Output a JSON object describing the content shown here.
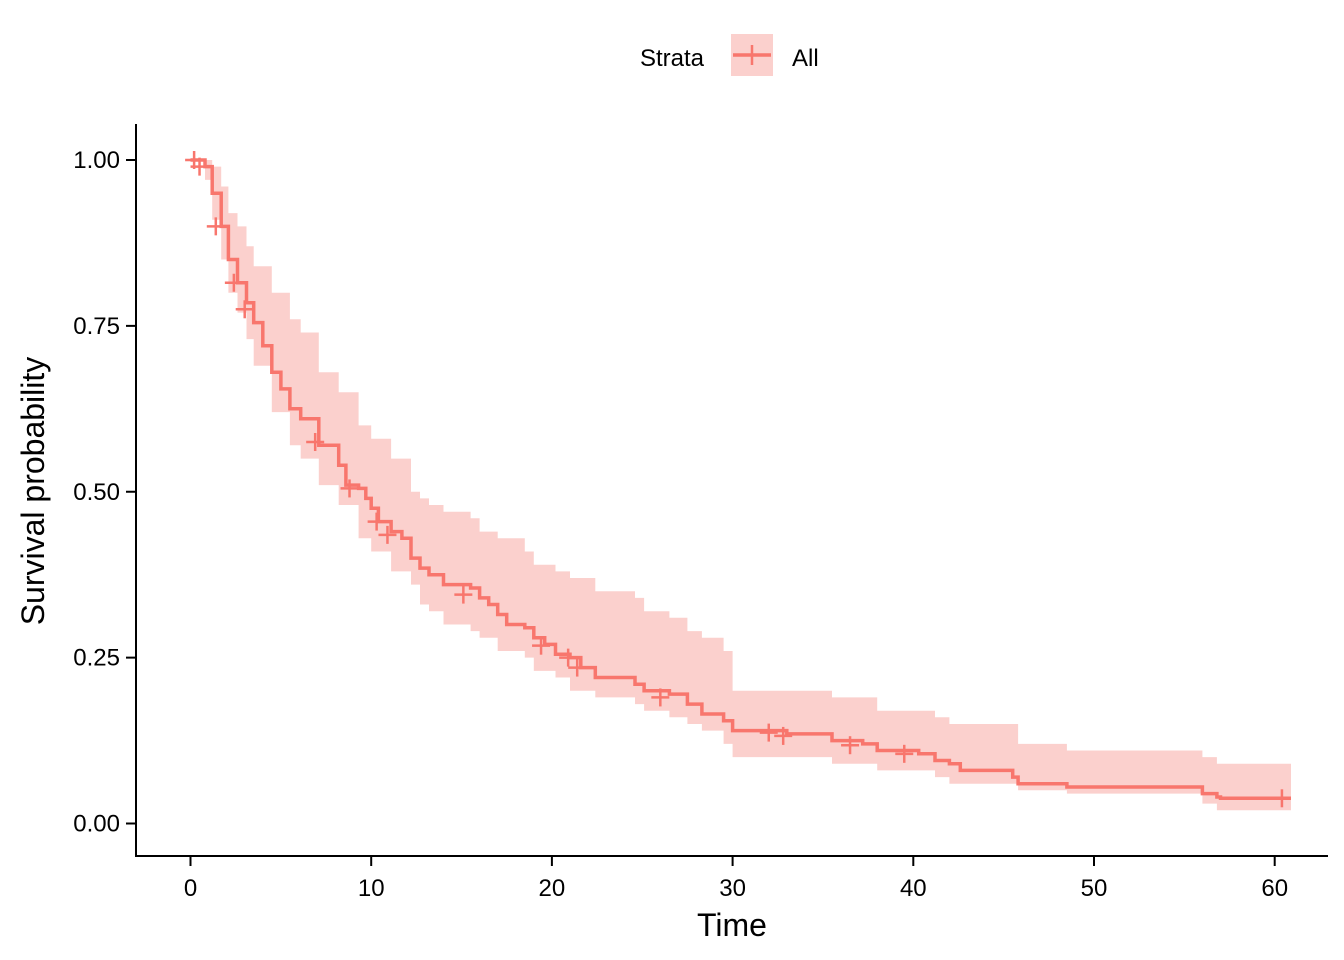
{
  "chart_data": {
    "type": "line",
    "title": "",
    "xlabel": "Time",
    "ylabel": "Survival probability",
    "xlim": [
      0,
      61
    ],
    "ylim": [
      0,
      1
    ],
    "xticks": [
      "0",
      "10",
      "20",
      "30",
      "40",
      "50",
      "60"
    ],
    "yticks": [
      "0.00",
      "0.25",
      "0.50",
      "0.75",
      "1.00"
    ],
    "grid": false,
    "legend": {
      "position": "top",
      "title": "Strata",
      "labels": [
        "All"
      ]
    },
    "colors": {
      "line": "#F8766D",
      "band": "#FBD0CD"
    },
    "series": [
      {
        "name": "All",
        "steps": [
          [
            0,
            1.0
          ],
          [
            0.8,
            0.99
          ],
          [
            1.2,
            0.95
          ],
          [
            1.7,
            0.9
          ],
          [
            1.9,
            0.9
          ],
          [
            2.1,
            0.85
          ],
          [
            2.6,
            0.815
          ],
          [
            3.1,
            0.785
          ],
          [
            3.5,
            0.755
          ],
          [
            4.0,
            0.72
          ],
          [
            4.5,
            0.68
          ],
          [
            5.0,
            0.655
          ],
          [
            5.5,
            0.625
          ],
          [
            6.1,
            0.61
          ],
          [
            6.6,
            0.61
          ],
          [
            7.1,
            0.57
          ],
          [
            7.9,
            0.57
          ],
          [
            8.2,
            0.54
          ],
          [
            8.6,
            0.51
          ],
          [
            9.3,
            0.505
          ],
          [
            9.7,
            0.49
          ],
          [
            10.0,
            0.475
          ],
          [
            10.4,
            0.455
          ],
          [
            11.1,
            0.44
          ],
          [
            11.7,
            0.43
          ],
          [
            12.2,
            0.4
          ],
          [
            12.7,
            0.385
          ],
          [
            13.2,
            0.375
          ],
          [
            14.0,
            0.36
          ],
          [
            15.5,
            0.355
          ],
          [
            16.0,
            0.34
          ],
          [
            16.5,
            0.33
          ],
          [
            17.0,
            0.315
          ],
          [
            17.5,
            0.3
          ],
          [
            18.5,
            0.295
          ],
          [
            19.0,
            0.28
          ],
          [
            19.6,
            0.27
          ],
          [
            20.2,
            0.255
          ],
          [
            21.0,
            0.25
          ],
          [
            21.6,
            0.235
          ],
          [
            22.4,
            0.22
          ],
          [
            24.6,
            0.21
          ],
          [
            25.1,
            0.2
          ],
          [
            26.5,
            0.195
          ],
          [
            27.5,
            0.18
          ],
          [
            28.3,
            0.165
          ],
          [
            29.5,
            0.155
          ],
          [
            30.0,
            0.14
          ],
          [
            33.0,
            0.135
          ],
          [
            35.5,
            0.125
          ],
          [
            37.2,
            0.12
          ],
          [
            38.0,
            0.11
          ],
          [
            40.3,
            0.105
          ],
          [
            41.2,
            0.095
          ],
          [
            42.0,
            0.09
          ],
          [
            42.6,
            0.08
          ],
          [
            45.5,
            0.07
          ],
          [
            45.8,
            0.06
          ],
          [
            48.5,
            0.055
          ],
          [
            56.0,
            0.045
          ],
          [
            56.8,
            0.04
          ],
          [
            57.0,
            0.038
          ],
          [
            60.9,
            0.038
          ]
        ],
        "censored": [
          [
            0.2,
            1.0
          ],
          [
            0.5,
            0.99
          ],
          [
            1.4,
            0.9
          ],
          [
            2.4,
            0.815
          ],
          [
            3.0,
            0.775
          ],
          [
            6.9,
            0.575
          ],
          [
            8.8,
            0.505
          ],
          [
            10.3,
            0.455
          ],
          [
            10.9,
            0.435
          ],
          [
            15.1,
            0.345
          ],
          [
            19.4,
            0.268
          ],
          [
            20.9,
            0.25
          ],
          [
            21.4,
            0.235
          ],
          [
            26.0,
            0.19
          ],
          [
            32.0,
            0.137
          ],
          [
            32.8,
            0.132
          ],
          [
            36.5,
            0.118
          ],
          [
            39.5,
            0.105
          ],
          [
            60.4,
            0.038
          ]
        ],
        "ci_band": [
          [
            0,
            1.0,
            1.0
          ],
          [
            0.8,
            0.97,
            1.0
          ],
          [
            1.2,
            0.91,
            0.99
          ],
          [
            1.7,
            0.85,
            0.96
          ],
          [
            2.1,
            0.8,
            0.92
          ],
          [
            2.6,
            0.77,
            0.9
          ],
          [
            3.1,
            0.73,
            0.87
          ],
          [
            3.5,
            0.69,
            0.84
          ],
          [
            4.5,
            0.62,
            0.8
          ],
          [
            5.5,
            0.57,
            0.76
          ],
          [
            6.1,
            0.55,
            0.74
          ],
          [
            7.1,
            0.51,
            0.68
          ],
          [
            8.2,
            0.48,
            0.65
          ],
          [
            9.3,
            0.43,
            0.6
          ],
          [
            10.0,
            0.41,
            0.58
          ],
          [
            11.1,
            0.38,
            0.55
          ],
          [
            12.2,
            0.36,
            0.5
          ],
          [
            12.7,
            0.33,
            0.49
          ],
          [
            13.2,
            0.32,
            0.48
          ],
          [
            14.0,
            0.3,
            0.47
          ],
          [
            15.5,
            0.29,
            0.46
          ],
          [
            16.0,
            0.28,
            0.44
          ],
          [
            17.0,
            0.26,
            0.43
          ],
          [
            18.5,
            0.25,
            0.41
          ],
          [
            19.0,
            0.23,
            0.39
          ],
          [
            20.2,
            0.22,
            0.38
          ],
          [
            21.0,
            0.2,
            0.37
          ],
          [
            22.4,
            0.19,
            0.35
          ],
          [
            24.6,
            0.18,
            0.34
          ],
          [
            25.1,
            0.17,
            0.32
          ],
          [
            26.5,
            0.16,
            0.31
          ],
          [
            27.5,
            0.15,
            0.29
          ],
          [
            28.3,
            0.14,
            0.28
          ],
          [
            29.5,
            0.12,
            0.26
          ],
          [
            30.0,
            0.1,
            0.2
          ],
          [
            35.5,
            0.09,
            0.19
          ],
          [
            38.0,
            0.08,
            0.17
          ],
          [
            41.2,
            0.07,
            0.16
          ],
          [
            42.0,
            0.06,
            0.15
          ],
          [
            45.8,
            0.05,
            0.12
          ],
          [
            48.5,
            0.045,
            0.11
          ],
          [
            56.0,
            0.03,
            0.1
          ],
          [
            56.8,
            0.02,
            0.09
          ],
          [
            60.9,
            0.02,
            0.09
          ]
        ]
      }
    ]
  }
}
